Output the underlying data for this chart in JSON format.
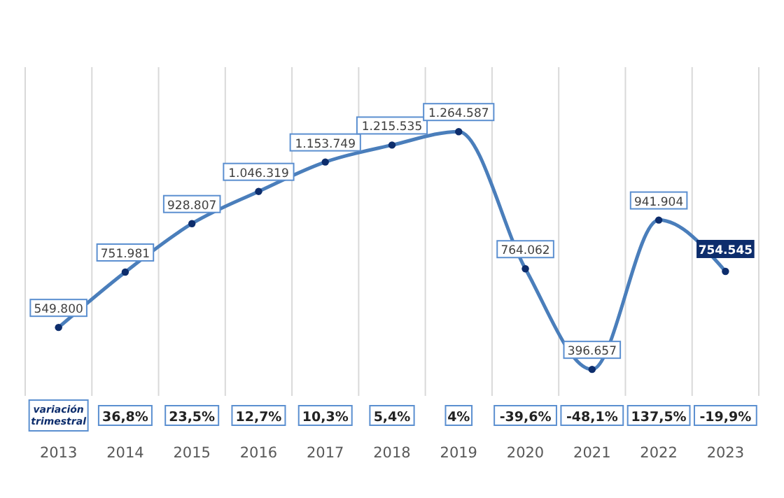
{
  "chart_data": {
    "type": "line",
    "categories": [
      "2013",
      "2014",
      "2015",
      "2016",
      "2017",
      "2018",
      "2019",
      "2020",
      "2021",
      "2022",
      "2023"
    ],
    "values": [
      549800,
      751981,
      928807,
      1046319,
      1153749,
      1215535,
      1264587,
      764062,
      396657,
      941904,
      754545
    ],
    "value_labels": [
      "549.800",
      "751.981",
      "928.807",
      "1.046.319",
      "1.153.749",
      "1.215.535",
      "1.264.587",
      "764.062",
      "396.657",
      "941.904",
      "754.545"
    ],
    "color": "#4a7ebb",
    "marker": "circle",
    "grid": "x",
    "annotations": [
      "variación trimestral",
      "36,8%",
      "23,5%",
      "12,7%",
      "10,3%",
      "5,4%",
      "4%",
      "-39,6%",
      "-48,1%",
      "137,5%",
      "-19,9%"
    ]
  }
}
